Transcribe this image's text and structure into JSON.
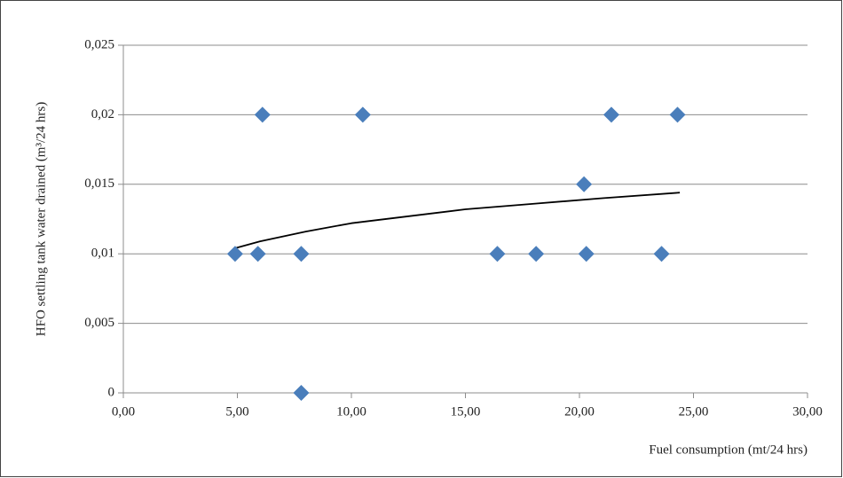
{
  "chart_data": {
    "type": "scatter",
    "x_label": "Fuel consumption (mt/24 hrs)",
    "y_label": "HFO settling tank water drained (m³/24 hrs)",
    "x": [
      4.9,
      5.9,
      7.8,
      7.8,
      6.1,
      10.5,
      16.4,
      18.1,
      20.3,
      23.6,
      20.2,
      21.4,
      24.3
    ],
    "values": [
      0.01,
      0.01,
      0.01,
      0,
      0.02,
      0.02,
      0.01,
      0.01,
      0.01,
      0.01,
      0.015,
      0.02,
      0.02
    ],
    "color": "#4a7ebb",
    "trendline": {
      "x": [
        4.9,
        6,
        8,
        10,
        12,
        15,
        18,
        21,
        24.4
      ],
      "values": [
        0.0104,
        0.0109,
        0.0116,
        0.0122,
        0.0126,
        0.0132,
        0.0136,
        0.014,
        0.0144
      ],
      "color": "#000000"
    },
    "xlim": [
      0,
      30
    ],
    "xticks": [
      {
        "value": 0,
        "label": "0,00"
      },
      {
        "value": 5,
        "label": "5,00"
      },
      {
        "value": 10,
        "label": "10,00"
      },
      {
        "value": 15,
        "label": "15,00"
      },
      {
        "value": 20,
        "label": "20,00"
      },
      {
        "value": 25,
        "label": "25,00"
      },
      {
        "value": 30,
        "label": "30,00"
      }
    ],
    "ylim": [
      0,
      0.025
    ],
    "yticks": [
      0,
      {
        "value": 0.005,
        "label": "0,005"
      },
      {
        "value": 0.01,
        "label": "0,01"
      },
      {
        "value": 0.015,
        "label": "0,015"
      },
      {
        "value": 0.02,
        "label": "0,02"
      },
      {
        "value": 0.025,
        "label": "0,025"
      }
    ],
    "grid": true
  }
}
